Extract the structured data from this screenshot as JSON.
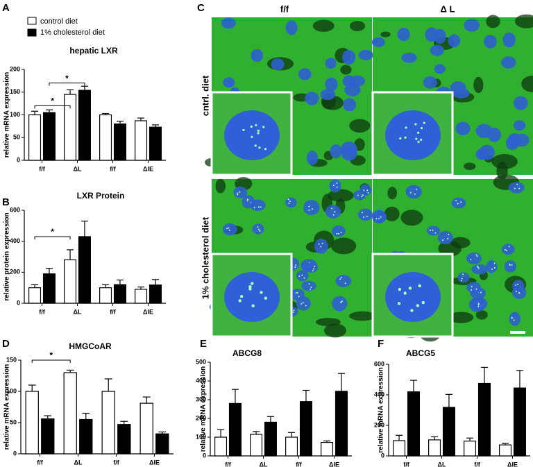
{
  "panel_labels": [
    "A",
    "B",
    "C",
    "D",
    "E",
    "F"
  ],
  "micrographs": {
    "columns": [
      "f/f",
      "Δ L"
    ],
    "rows": [
      "cntrl. diet",
      "1% cholesterol diet"
    ]
  },
  "chart_data": [
    {
      "type": "bar",
      "title": "hepatic LXR",
      "ylabel": "relative mRNA expression",
      "categories": [
        "f/f",
        "ΔL",
        "f/f",
        "ΔIE"
      ],
      "ylim": [
        0,
        200
      ],
      "yticks": [
        0,
        50,
        100,
        150,
        200
      ],
      "series": [
        {
          "name": "control diet",
          "color": "#ffffff",
          "values": [
            100,
            145,
            100,
            87
          ],
          "errors": [
            8,
            10,
            3,
            6
          ]
        },
        {
          "name": "1% cholesterol diet",
          "color": "#000000",
          "values": [
            105,
            154,
            80,
            73
          ],
          "errors": [
            6,
            9,
            6,
            5
          ]
        }
      ],
      "annotations": [
        {
          "text": "*"
        },
        {
          "text": "*"
        }
      ]
    },
    {
      "type": "bar",
      "title": "LXR Protein",
      "ylabel": "relative protein expression",
      "categories": [
        "f/f",
        "ΔL",
        "f/f",
        "ΔIE"
      ],
      "ylim": [
        0,
        600
      ],
      "yticks": [
        0,
        200,
        400,
        600
      ],
      "series": [
        {
          "name": "control diet",
          "color": "#ffffff",
          "values": [
            100,
            280,
            100,
            90
          ],
          "errors": [
            20,
            65,
            20,
            15
          ]
        },
        {
          "name": "1% cholesterol diet",
          "color": "#000000",
          "values": [
            190,
            430,
            120,
            118
          ],
          "errors": [
            35,
            100,
            30,
            35
          ]
        }
      ],
      "annotations": [
        {
          "text": "*"
        }
      ]
    },
    {
      "type": "bar",
      "title": "HMGCoAR",
      "ylabel": "relative mRNA expression",
      "categories": [
        "f/f",
        "ΔL",
        "f/f",
        "ΔIE"
      ],
      "ylim": [
        0,
        150
      ],
      "yticks": [
        0,
        50,
        100,
        150
      ],
      "series": [
        {
          "name": "control diet",
          "color": "#ffffff",
          "values": [
            100,
            130,
            100,
            81
          ],
          "errors": [
            10,
            4,
            20,
            10
          ]
        },
        {
          "name": "1% cholesterol diet",
          "color": "#000000",
          "values": [
            56,
            55,
            47,
            32
          ],
          "errors": [
            5,
            10,
            5,
            3
          ]
        }
      ],
      "annotations": [
        {
          "text": "*"
        }
      ]
    },
    {
      "type": "bar",
      "title": "ABCG8",
      "ylabel": "relative mRNA expression",
      "categories": [
        "f/f",
        "ΔL",
        "f/f",
        "ΔIE"
      ],
      "ylim": [
        0,
        500
      ],
      "yticks": [
        0,
        100,
        200,
        300,
        400,
        500
      ],
      "series": [
        {
          "name": "control diet",
          "color": "#ffffff",
          "values": [
            100,
            115,
            100,
            72
          ],
          "errors": [
            40,
            15,
            25,
            8
          ]
        },
        {
          "name": "1% cholesterol diet",
          "color": "#000000",
          "values": [
            280,
            180,
            290,
            345
          ],
          "errors": [
            75,
            30,
            60,
            95
          ]
        }
      ]
    },
    {
      "type": "bar",
      "title": "ABCG5",
      "ylabel": "relative mRNA expression",
      "categories": [
        "f/f",
        "ΔL",
        "f/f",
        "ΔIE"
      ],
      "ylim": [
        0,
        600
      ],
      "yticks": [
        0,
        200,
        400,
        600
      ],
      "series": [
        {
          "name": "control diet",
          "color": "#ffffff",
          "values": [
            100,
            105,
            97,
            72
          ],
          "errors": [
            35,
            20,
            20,
            10
          ]
        },
        {
          "name": "1% cholesterol diet",
          "color": "#000000",
          "values": [
            420,
            318,
            475,
            445
          ],
          "errors": [
            75,
            85,
            105,
            115
          ]
        }
      ]
    }
  ]
}
